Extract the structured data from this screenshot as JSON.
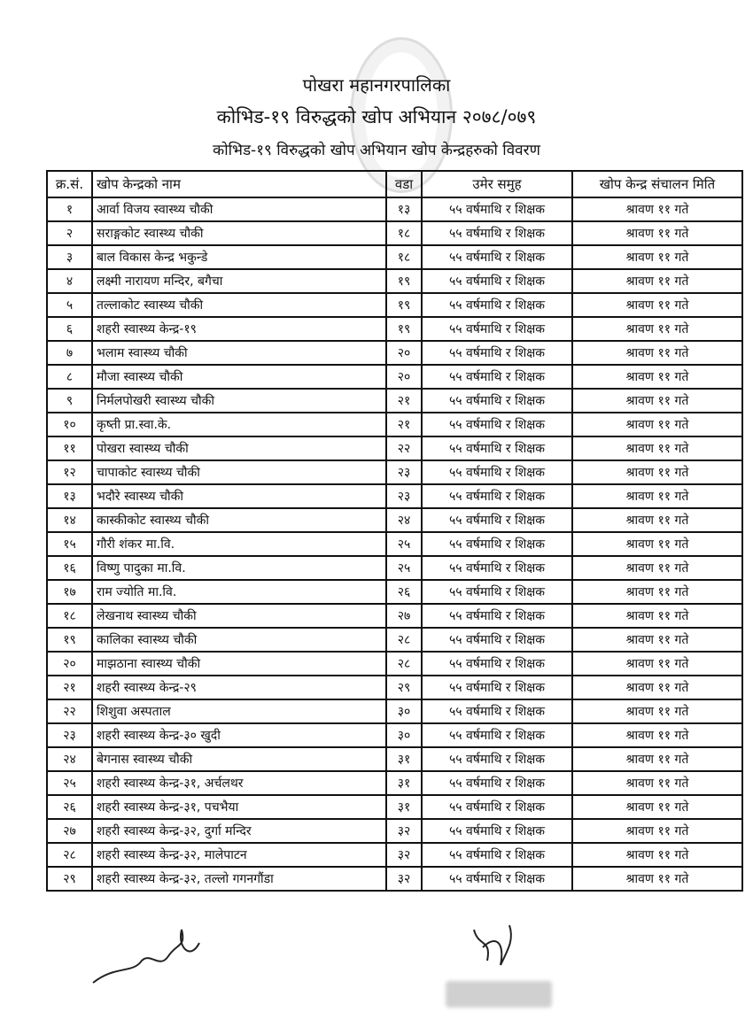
{
  "header": {
    "office": "पोखरा महानगरपालिका",
    "campaign": "कोभिड-१९ विरुद्धको खोप अभियान २०७८/०७९",
    "subtitle": "कोभिड-१९ विरुद्धको खोप अभियान खोप केन्द्रहरुको विवरण"
  },
  "table": {
    "columns": [
      "क्र.सं.",
      "खोप केन्द्रको नाम",
      "वडा",
      "उमेर समुह",
      "खोप केन्द्र संचालन मिति"
    ],
    "rows": [
      [
        "१",
        "आर्वा विजय स्वास्थ्य चौकी",
        "१३",
        "५५ वर्षमाथि र शिक्षक",
        "श्रावण ११ गते"
      ],
      [
        "२",
        "सराङ्गकोट स्वास्थ्य चौकी",
        "१८",
        "५५ वर्षमाथि र शिक्षक",
        "श्रावण ११ गते"
      ],
      [
        "३",
        "बाल विकास केन्द्र भकुन्डे",
        "१८",
        "५५ वर्षमाथि र शिक्षक",
        "श्रावण ११ गते"
      ],
      [
        "४",
        "लक्ष्मी नारायण मन्दिर, बगैचा",
        "१९",
        "५५ वर्षमाथि र शिक्षक",
        "श्रावण ११ गते"
      ],
      [
        "५",
        "तल्लाकोट स्वास्थ्य चौकी",
        "१९",
        "५५ वर्षमाथि र शिक्षक",
        "श्रावण ११ गते"
      ],
      [
        "६",
        "शहरी स्वास्थ्य केन्द्र-१९",
        "१९",
        "५५ वर्षमाथि र शिक्षक",
        "श्रावण ११ गते"
      ],
      [
        "७",
        "भलाम स्वास्थ्य चौकी",
        "२०",
        "५५ वर्षमाथि र शिक्षक",
        "श्रावण ११ गते"
      ],
      [
        "८",
        "मौजा स्वास्थ्य चौकी",
        "२०",
        "५५ वर्षमाथि र शिक्षक",
        "श्रावण ११ गते"
      ],
      [
        "९",
        "निर्मलपोखरी स्वास्थ्य चौकी",
        "२१",
        "५५ वर्षमाथि र शिक्षक",
        "श्रावण ११ गते"
      ],
      [
        "१०",
        "कृष्ती प्रा.स्वा.के.",
        "२१",
        "५५ वर्षमाथि र शिक्षक",
        "श्रावण ११ गते"
      ],
      [
        "११",
        "पोखरा स्वास्थ्य चौकी",
        "२२",
        "५५ वर्षमाथि र शिक्षक",
        "श्रावण ११ गते"
      ],
      [
        "१२",
        "चापाकोट स्वास्थ्य चौकी",
        "२३",
        "५५ वर्षमाथि र शिक्षक",
        "श्रावण ११ गते"
      ],
      [
        "१३",
        "भदौरे स्वास्थ्य चौकी",
        "२३",
        "५५ वर्षमाथि र शिक्षक",
        "श्रावण ११ गते"
      ],
      [
        "१४",
        "कास्कीकोट स्वास्थ्य चौकी",
        "२४",
        "५५ वर्षमाथि र शिक्षक",
        "श्रावण ११ गते"
      ],
      [
        "१५",
        "गौरी शंकर मा.वि.",
        "२५",
        "५५ वर्षमाथि र शिक्षक",
        "श्रावण ११ गते"
      ],
      [
        "१६",
        "विष्णु पादुका मा.वि.",
        "२५",
        "५५ वर्षमाथि र शिक्षक",
        "श्रावण ११ गते"
      ],
      [
        "१७",
        "राम ज्योति मा.वि.",
        "२६",
        "५५ वर्षमाथि र शिक्षक",
        "श्रावण ११ गते"
      ],
      [
        "१८",
        "लेखनाथ स्वास्थ्य चौकी",
        "२७",
        "५५ वर्षमाथि र शिक्षक",
        "श्रावण ११ गते"
      ],
      [
        "१९",
        "कालिका स्वास्थ्य चौकी",
        "२८",
        "५५ वर्षमाथि र शिक्षक",
        "श्रावण ११ गते"
      ],
      [
        "२०",
        "माझठाना स्वास्थ्य चौकी",
        "२८",
        "५५ वर्षमाथि र शिक्षक",
        "श्रावण ११ गते"
      ],
      [
        "२१",
        "शहरी स्वास्थ्य केन्द्र-२९",
        "२९",
        "५५ वर्षमाथि र शिक्षक",
        "श्रावण ११ गते"
      ],
      [
        "२२",
        "शिशुवा अस्पताल",
        "३०",
        "५५ वर्षमाथि र शिक्षक",
        "श्रावण ११ गते"
      ],
      [
        "२३",
        "शहरी स्वास्थ्य केन्द्र-३० खुदी",
        "३०",
        "५५ वर्षमाथि र शिक्षक",
        "श्रावण ११ गते"
      ],
      [
        "२४",
        "बेगनास स्वास्थ्य चौकी",
        "३१",
        "५५ वर्षमाथि र शिक्षक",
        "श्रावण ११ गते"
      ],
      [
        "२५",
        "शहरी स्वास्थ्य केन्द्र-३१, अर्चलथर",
        "३१",
        "५५ वर्षमाथि र शिक्षक",
        "श्रावण ११ गते"
      ],
      [
        "२६",
        "शहरी स्वास्थ्य केन्द्र-३१, पचभैया",
        "३१",
        "५५ वर्षमाथि र शिक्षक",
        "श्रावण ११ गते"
      ],
      [
        "२७",
        "शहरी स्वास्थ्य केन्द्र-३२, दुर्गा मन्दिर",
        "३२",
        "५५ वर्षमाथि र शिक्षक",
        "श्रावण ११ गते"
      ],
      [
        "२८",
        "शहरी स्वास्थ्य केन्द्र-३२, मालेपाटन",
        "३२",
        "५५ वर्षमाथि र शिक्षक",
        "श्रावण ११ गते"
      ],
      [
        "२९",
        "शहरी स्वास्थ्य केन्द्र-३२, तल्लो गगनगौंडा",
        "३२",
        "५५ वर्षमाथि र शिक्षक",
        "श्रावण ११ गते"
      ]
    ]
  },
  "icons": {
    "seal": "official-seal",
    "signatures": [
      "signature-left",
      "signature-right"
    ],
    "stamp": "office-stamp"
  }
}
